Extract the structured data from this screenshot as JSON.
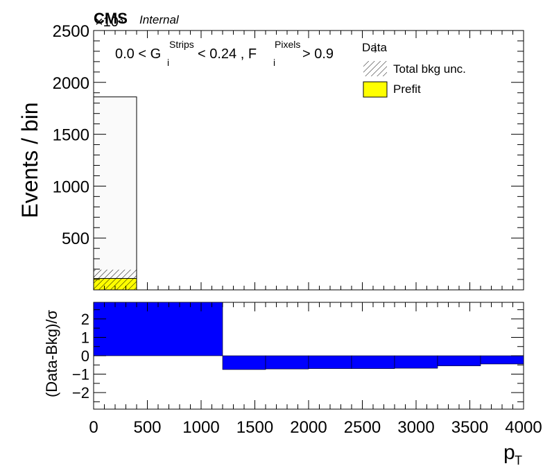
{
  "header": {
    "cms": "CMS",
    "internal": "Internal",
    "exponent": "×10³"
  },
  "selection": {
    "part1": "0.0 < G",
    "sub1": "i",
    "sup1": "Strips",
    "part2": " < 0.24 , F",
    "sub2": "i",
    "sup2": "Pixels",
    "part3": " > 0.9"
  },
  "legend": {
    "position": "top-right",
    "items": [
      {
        "label": "Data",
        "style": "marker"
      },
      {
        "label": "Total bkg unc.",
        "style": "hatch"
      },
      {
        "label": "Prefit",
        "style": "fill",
        "color": "#ffff00"
      }
    ]
  },
  "axes": {
    "ylabel_top": "Events / bin",
    "ylabel_bottom": "(Data-Bkg)/σ",
    "xlabel": "p",
    "xlabel_sub": "T"
  },
  "chart_data": [
    {
      "type": "bar",
      "panel": "top",
      "ylabel": "Events / bin",
      "y_multiplier": 1000,
      "xlim": [
        0,
        4000
      ],
      "ylim": [
        0,
        2500
      ],
      "yticks": [
        500,
        1000,
        1500,
        2000,
        2500
      ],
      "bins": [
        [
          0,
          400
        ]
      ],
      "series": [
        {
          "name": "Data",
          "values": [
            1860
          ],
          "color": "#ffffff"
        },
        {
          "name": "Prefit",
          "values": [
            110
          ],
          "color": "#ffff00"
        },
        {
          "name": "Total bkg unc.",
          "values": [
            [
              0,
              195
            ]
          ],
          "color": "hatch"
        }
      ]
    },
    {
      "type": "bar",
      "panel": "bottom",
      "ylabel": "(Data-Bkg)/σ",
      "xlabel": "pT",
      "xlim": [
        0,
        4000
      ],
      "ylim": [
        -2.9,
        2.9
      ],
      "yticks": [
        -2,
        -1,
        0,
        1,
        2
      ],
      "xticks": [
        0,
        500,
        1000,
        1500,
        2000,
        2500,
        3000,
        3500,
        4000
      ],
      "color": "#0000ff",
      "bins": [
        [
          0,
          1200
        ],
        [
          1200,
          1600
        ],
        [
          1600,
          2000
        ],
        [
          2000,
          2400
        ],
        [
          2400,
          2800
        ],
        [
          2800,
          3200
        ],
        [
          3200,
          3600
        ],
        [
          3600,
          4000
        ]
      ],
      "values": [
        2.9,
        -0.75,
        -0.72,
        -0.7,
        -0.7,
        -0.68,
        -0.55,
        -0.45
      ]
    }
  ]
}
